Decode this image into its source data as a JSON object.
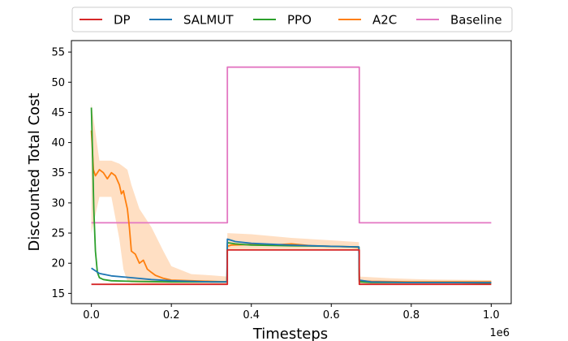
{
  "chart_data": {
    "type": "line",
    "title": "",
    "xlabel": "Timesteps",
    "ylabel": "Discounted Total Cost",
    "x_offset_label": "1e6",
    "xlim": [
      -0.05,
      1.05
    ],
    "ylim": [
      13.3,
      56.9
    ],
    "x_ticks": [
      0.0,
      0.2,
      0.4,
      0.6,
      0.8,
      1.0
    ],
    "x_tick_labels": [
      "0.0",
      "0.2",
      "0.4",
      "0.6",
      "0.8",
      "1.0"
    ],
    "y_ticks": [
      15,
      20,
      25,
      30,
      35,
      40,
      45,
      50,
      55
    ],
    "y_tick_labels": [
      "15",
      "20",
      "25",
      "30",
      "35",
      "40",
      "45",
      "50",
      "55"
    ],
    "grid": false,
    "legend_position": "top-center",
    "series": [
      {
        "name": "DP",
        "color": "#d62728",
        "x": [
          0.0,
          0.34,
          0.34,
          0.67,
          0.67,
          1.0
        ],
        "y": [
          16.5,
          16.5,
          22.2,
          22.2,
          16.5,
          16.5
        ]
      },
      {
        "name": "SALMUT",
        "color": "#1f77b4",
        "x": [
          0.0,
          0.02,
          0.05,
          0.1,
          0.15,
          0.2,
          0.25,
          0.3,
          0.339,
          0.34,
          0.36,
          0.4,
          0.5,
          0.6,
          0.669,
          0.67,
          0.7,
          0.8,
          0.9,
          1.0
        ],
        "y": [
          19.2,
          18.3,
          17.9,
          17.6,
          17.3,
          17.1,
          17.0,
          16.9,
          16.9,
          24.0,
          23.6,
          23.3,
          23.0,
          22.8,
          22.7,
          17.2,
          16.9,
          16.8,
          16.8,
          16.8
        ]
      },
      {
        "name": "PPO",
        "color": "#2ca02c",
        "x": [
          0.0,
          0.003,
          0.006,
          0.01,
          0.015,
          0.02,
          0.03,
          0.05,
          0.1,
          0.2,
          0.3,
          0.339,
          0.34,
          0.36,
          0.4,
          0.5,
          0.6,
          0.669,
          0.67,
          0.7,
          0.8,
          0.9,
          1.0
        ],
        "y": [
          45.8,
          38.0,
          29.0,
          22.0,
          18.5,
          17.6,
          17.3,
          17.1,
          17.0,
          16.9,
          16.9,
          16.9,
          23.4,
          23.2,
          23.0,
          22.9,
          22.8,
          22.7,
          16.9,
          16.8,
          16.8,
          16.8,
          16.7
        ]
      },
      {
        "name": "A2C",
        "color": "#ff7f0e",
        "x": [
          0.0,
          0.005,
          0.01,
          0.02,
          0.03,
          0.04,
          0.05,
          0.06,
          0.07,
          0.075,
          0.08,
          0.085,
          0.09,
          0.095,
          0.1,
          0.11,
          0.12,
          0.13,
          0.14,
          0.15,
          0.16,
          0.18,
          0.2,
          0.25,
          0.3,
          0.339,
          0.34,
          0.35,
          0.4,
          0.45,
          0.5,
          0.55,
          0.6,
          0.65,
          0.669,
          0.67,
          0.7,
          0.8,
          0.9,
          1.0
        ],
        "y": [
          42.0,
          35.5,
          34.5,
          35.5,
          35.0,
          34.0,
          35.0,
          34.5,
          33.0,
          31.5,
          32.0,
          30.5,
          29.0,
          26.0,
          22.0,
          21.5,
          20.0,
          20.5,
          19.0,
          18.5,
          18.0,
          17.5,
          17.2,
          17.1,
          17.0,
          16.9,
          22.8,
          23.0,
          23.1,
          23.0,
          23.2,
          22.9,
          22.8,
          22.7,
          22.6,
          17.1,
          17.0,
          16.9,
          16.9,
          16.9
        ]
      },
      {
        "name": "Baseline",
        "color": "#e377c2",
        "x": [
          0.0,
          0.34,
          0.34,
          0.67,
          0.67,
          1.0
        ],
        "y": [
          26.7,
          26.7,
          52.5,
          52.5,
          26.7,
          26.7
        ]
      }
    ],
    "bands": [
      {
        "series": "A2C",
        "color": "#ff7f0e",
        "x": [
          0.0,
          0.02,
          0.05,
          0.07,
          0.08,
          0.09,
          0.1,
          0.12,
          0.15,
          0.18,
          0.2,
          0.25,
          0.3,
          0.339,
          0.34,
          0.4,
          0.5,
          0.6,
          0.669,
          0.67,
          0.75,
          0.85,
          1.0
        ],
        "upper": [
          46.5,
          37.0,
          37.0,
          36.5,
          36.0,
          35.5,
          33.0,
          29.0,
          26.0,
          22.0,
          19.5,
          18.2,
          18.0,
          17.8,
          25.0,
          24.8,
          24.2,
          23.8,
          23.5,
          17.8,
          17.5,
          17.3,
          17.2
        ],
        "lower": [
          25.0,
          31.0,
          31.0,
          24.0,
          19.0,
          17.0,
          16.8,
          16.7,
          16.6,
          16.5,
          16.5,
          16.5,
          16.5,
          16.5,
          22.2,
          22.2,
          22.2,
          22.2,
          22.2,
          16.5,
          16.5,
          16.5,
          16.5
        ]
      }
    ]
  }
}
